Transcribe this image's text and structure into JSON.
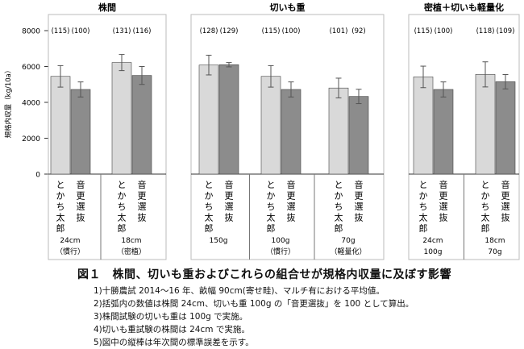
{
  "caption": {
    "title": "図１　株間、切いも重およびこれらの組合せが規格内収量に及ぼす影響",
    "notes": [
      "1)十勝農試 2014～16 年、畝幅 90cm(寄せ畦)、マルチ有における平均値。",
      "2)括弧内の数値は株間 24cm、切いも重 100g の「音更選抜」を 100 として算出。",
      "3)株間試験の切いも重は 100g で実施。",
      "4)切いも重試験の株間は 24cm で実施。",
      "5)図中の縦棒は年次間の標準誤差を示す。"
    ]
  },
  "colors": {
    "series1": "#d9d9d9",
    "series2": "#8c8c8c",
    "outline": "#444444",
    "error": "#555555"
  },
  "chart_data": {
    "type": "bar",
    "ylabel": "規格内収量（kg/10a）",
    "ylim": [
      0,
      8000
    ],
    "yticks": [
      "0",
      "2000",
      "4000",
      "6000",
      "8000"
    ],
    "ytick_values": [
      0,
      2000,
      4000,
      6000,
      8000
    ],
    "panels": [
      {
        "title": "株間",
        "groups": [
          {
            "label": "24cm",
            "sublabel": "（慣行）",
            "bars": [
              {
                "cultivar": "とかち太郎",
                "value": 5450,
                "error": 600,
                "index_label": "(115)"
              },
              {
                "cultivar": "音更選抜",
                "value": 4720,
                "error": 420,
                "index_label": "(100)"
              }
            ]
          },
          {
            "label": "18cm",
            "sublabel": "（密植）",
            "bars": [
              {
                "cultivar": "とかち太郎",
                "value": 6220,
                "error": 450,
                "index_label": "(131)"
              },
              {
                "cultivar": "音更選抜",
                "value": 5500,
                "error": 500,
                "index_label": "(116)"
              }
            ]
          }
        ]
      },
      {
        "title": "切いも重",
        "groups": [
          {
            "label": "150g",
            "sublabel": "",
            "bars": [
              {
                "cultivar": "とかち太郎",
                "value": 6080,
                "error": 550,
                "index_label": "(128)"
              },
              {
                "cultivar": "音更選抜",
                "value": 6100,
                "error": 120,
                "index_label": "(129)"
              }
            ]
          },
          {
            "label": "100g",
            "sublabel": "（慣行）",
            "bars": [
              {
                "cultivar": "とかち太郎",
                "value": 5450,
                "error": 600,
                "index_label": "(115)"
              },
              {
                "cultivar": "音更選抜",
                "value": 4720,
                "error": 420,
                "index_label": "(100)"
              }
            ]
          },
          {
            "label": "70g",
            "sublabel": "（軽量化）",
            "bars": [
              {
                "cultivar": "とかち太郎",
                "value": 4800,
                "error": 550,
                "index_label": "(101)"
              },
              {
                "cultivar": "音更選抜",
                "value": 4330,
                "error": 400,
                "index_label": "(92)"
              }
            ]
          }
        ]
      },
      {
        "title": "密植＋切いも軽量化",
        "groups": [
          {
            "label": "24cm",
            "sublabel": "100g",
            "bars": [
              {
                "cultivar": "とかち太郎",
                "value": 5420,
                "error": 600,
                "index_label": "(115)"
              },
              {
                "cultivar": "音更選抜",
                "value": 4720,
                "error": 420,
                "index_label": "(100)"
              }
            ]
          },
          {
            "label": "18cm",
            "sublabel": "70g",
            "bars": [
              {
                "cultivar": "とかち太郎",
                "value": 5560,
                "error": 700,
                "index_label": "(118)"
              },
              {
                "cultivar": "音更選抜",
                "value": 5150,
                "error": 400,
                "index_label": "(109)"
              }
            ]
          }
        ]
      }
    ]
  }
}
